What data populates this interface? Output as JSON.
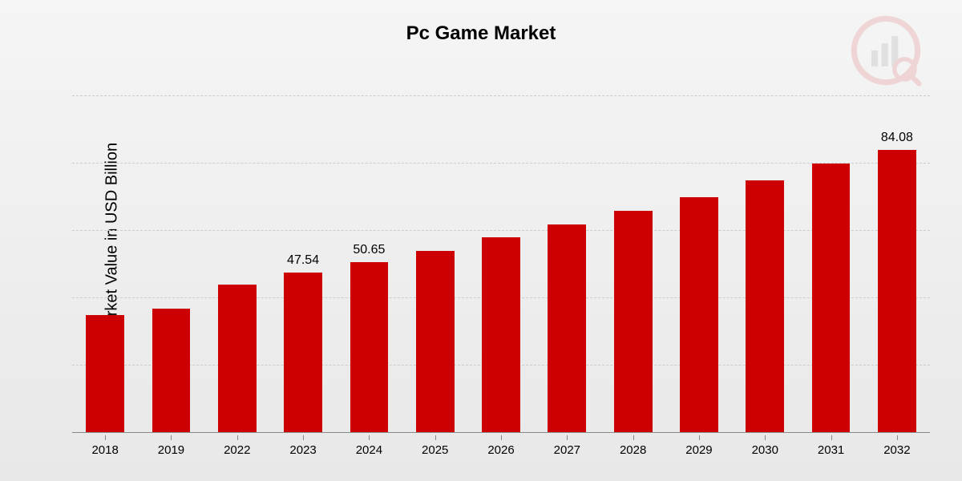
{
  "chart": {
    "type": "bar",
    "title": "Pc Game Market",
    "ylabel": "Market Value in USD Billion",
    "title_fontsize": 24,
    "ylabel_fontsize": 20,
    "xtick_fontsize": 15,
    "value_label_fontsize": 16,
    "background_gradient_top": "#f5f5f5",
    "background_gradient_bottom": "#e8e8e8",
    "bar_color": "#cc0000",
    "grid_color": "#cccccc",
    "axis_color": "#888888",
    "text_color": "#000000",
    "ylim": [
      0,
      100
    ],
    "grid_lines": [
      0,
      20,
      40,
      60,
      80,
      100
    ],
    "bar_width_ratio": 0.58,
    "categories": [
      "2018",
      "2019",
      "2022",
      "2023",
      "2024",
      "2025",
      "2026",
      "2027",
      "2028",
      "2029",
      "2030",
      "2031",
      "2032"
    ],
    "values": [
      35,
      37,
      44,
      47.54,
      50.65,
      54,
      58,
      62,
      66,
      70,
      75,
      80,
      84.08
    ],
    "value_labels": [
      "",
      "",
      "",
      "47.54",
      "50.65",
      "",
      "",
      "",
      "",
      "",
      "",
      "",
      "84.08"
    ],
    "watermark": {
      "opacity": 0.12,
      "circle_color": "#cc0000",
      "bar_color": "#555555"
    }
  }
}
